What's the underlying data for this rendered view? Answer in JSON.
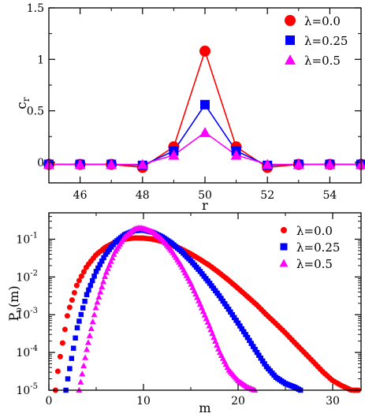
{
  "chart_data": [
    {
      "type": "line",
      "xlabel": "r",
      "ylabel": "c",
      "ylabel_sub": "r",
      "xlim": [
        45,
        55
      ],
      "ylim": [
        -0.2,
        1.5
      ],
      "xticks": [
        46,
        48,
        50,
        52,
        54
      ],
      "xtick_labels": [
        "46",
        "48",
        "50",
        "52",
        "54"
      ],
      "yticks": [
        0,
        0.5,
        1,
        1.5
      ],
      "ytick_labels": [
        "0",
        "0.5",
        "1",
        "1.5"
      ],
      "grid": false,
      "legend_position": "top-right",
      "x": [
        45,
        46,
        47,
        48,
        49,
        50,
        51,
        52,
        53,
        54,
        55
      ],
      "series": [
        {
          "name": "λ=0.0",
          "marker": "circle",
          "color": "#ff0000",
          "values": [
            -0.02,
            -0.02,
            -0.02,
            -0.05,
            0.15,
            1.08,
            0.15,
            -0.05,
            -0.02,
            -0.02,
            -0.02
          ]
        },
        {
          "name": "λ=0.25",
          "marker": "square",
          "color": "#0000ff",
          "values": [
            -0.02,
            -0.02,
            -0.02,
            -0.03,
            0.11,
            0.56,
            0.11,
            -0.03,
            -0.02,
            -0.02,
            -0.02
          ]
        },
        {
          "name": "λ=0.5",
          "marker": "triangle",
          "color": "#ff00ff",
          "values": [
            -0.02,
            -0.02,
            -0.02,
            -0.02,
            0.07,
            0.29,
            0.07,
            -0.02,
            -0.02,
            -0.02,
            -0.02
          ]
        }
      ]
    },
    {
      "type": "scatter",
      "xlabel": "m",
      "ylabel": "P",
      "ylabel_sub": "υ",
      "ylabel_suffix": "(m)",
      "xlim": [
        0,
        33
      ],
      "ylim": [
        1e-05,
        0.5
      ],
      "yscale": "log",
      "xticks": [
        0,
        10,
        20,
        30
      ],
      "xtick_labels": [
        "0",
        "10",
        "20",
        "30"
      ],
      "yticks": [
        1e-05,
        0.0001,
        0.001,
        0.01,
        0.1
      ],
      "ytick_mantissa": [
        "10",
        "10",
        "10",
        "10",
        "10"
      ],
      "ytick_exponents": [
        "-5",
        "-4",
        "-3",
        "-2",
        "-1"
      ],
      "grid": false,
      "legend_position": "top-right",
      "series": [
        {
          "name": "λ=0.0",
          "marker": "circle",
          "color": "#ff0000",
          "x": [
            0.7,
            1,
            2,
            3,
            4,
            5,
            6,
            7,
            8,
            9,
            10,
            11,
            12,
            13,
            14,
            15,
            16,
            17,
            18,
            19,
            20,
            21,
            22,
            23,
            24,
            25,
            26,
            27,
            28,
            29,
            30,
            31,
            32,
            32.7
          ],
          "values": [
            1e-05,
            4e-05,
            0.0011,
            0.0065,
            0.019,
            0.039,
            0.062,
            0.083,
            0.1,
            0.108,
            0.107,
            0.1,
            0.087,
            0.071,
            0.055,
            0.041,
            0.029,
            0.02,
            0.013,
            0.0082,
            0.005,
            0.003,
            0.0018,
            0.001,
            0.00058,
            0.00033,
            0.00018,
            0.0001,
            5.5e-05,
            3e-05,
            1.8e-05,
            1.3e-05,
            1e-05,
            1e-05
          ]
        },
        {
          "name": "λ=0.25",
          "marker": "square",
          "color": "#0000ff",
          "x": [
            1.8,
            2,
            3,
            4,
            5,
            6,
            7,
            8,
            9,
            10,
            11,
            12,
            13,
            14,
            15,
            16,
            17,
            18,
            19,
            20,
            21,
            22,
            23,
            24,
            25,
            26,
            26.6
          ],
          "values": [
            1e-05,
            2e-05,
            0.00045,
            0.0034,
            0.014,
            0.04,
            0.083,
            0.132,
            0.168,
            0.174,
            0.152,
            0.115,
            0.078,
            0.048,
            0.027,
            0.014,
            0.0068,
            0.0032,
            0.0014,
            0.0006,
            0.00025,
            0.0001,
            4.2e-05,
            2.2e-05,
            1.5e-05,
            1.2e-05,
            1e-05
          ]
        },
        {
          "name": "λ=0.5",
          "marker": "triangle",
          "color": "#ff00ff",
          "x": [
            3.2,
            4,
            5,
            6,
            7,
            8,
            9,
            9.5,
            10,
            11,
            12,
            13,
            14,
            15,
            16,
            17,
            18,
            19,
            20,
            21,
            21.8
          ],
          "values": [
            1e-05,
            0.00012,
            0.0017,
            0.012,
            0.047,
            0.115,
            0.185,
            0.2,
            0.195,
            0.155,
            0.097,
            0.049,
            0.02,
            0.0068,
            0.0019,
            0.00048,
            0.00011,
            3.5e-05,
            1.8e-05,
            1.2e-05,
            1e-05
          ]
        }
      ]
    }
  ]
}
